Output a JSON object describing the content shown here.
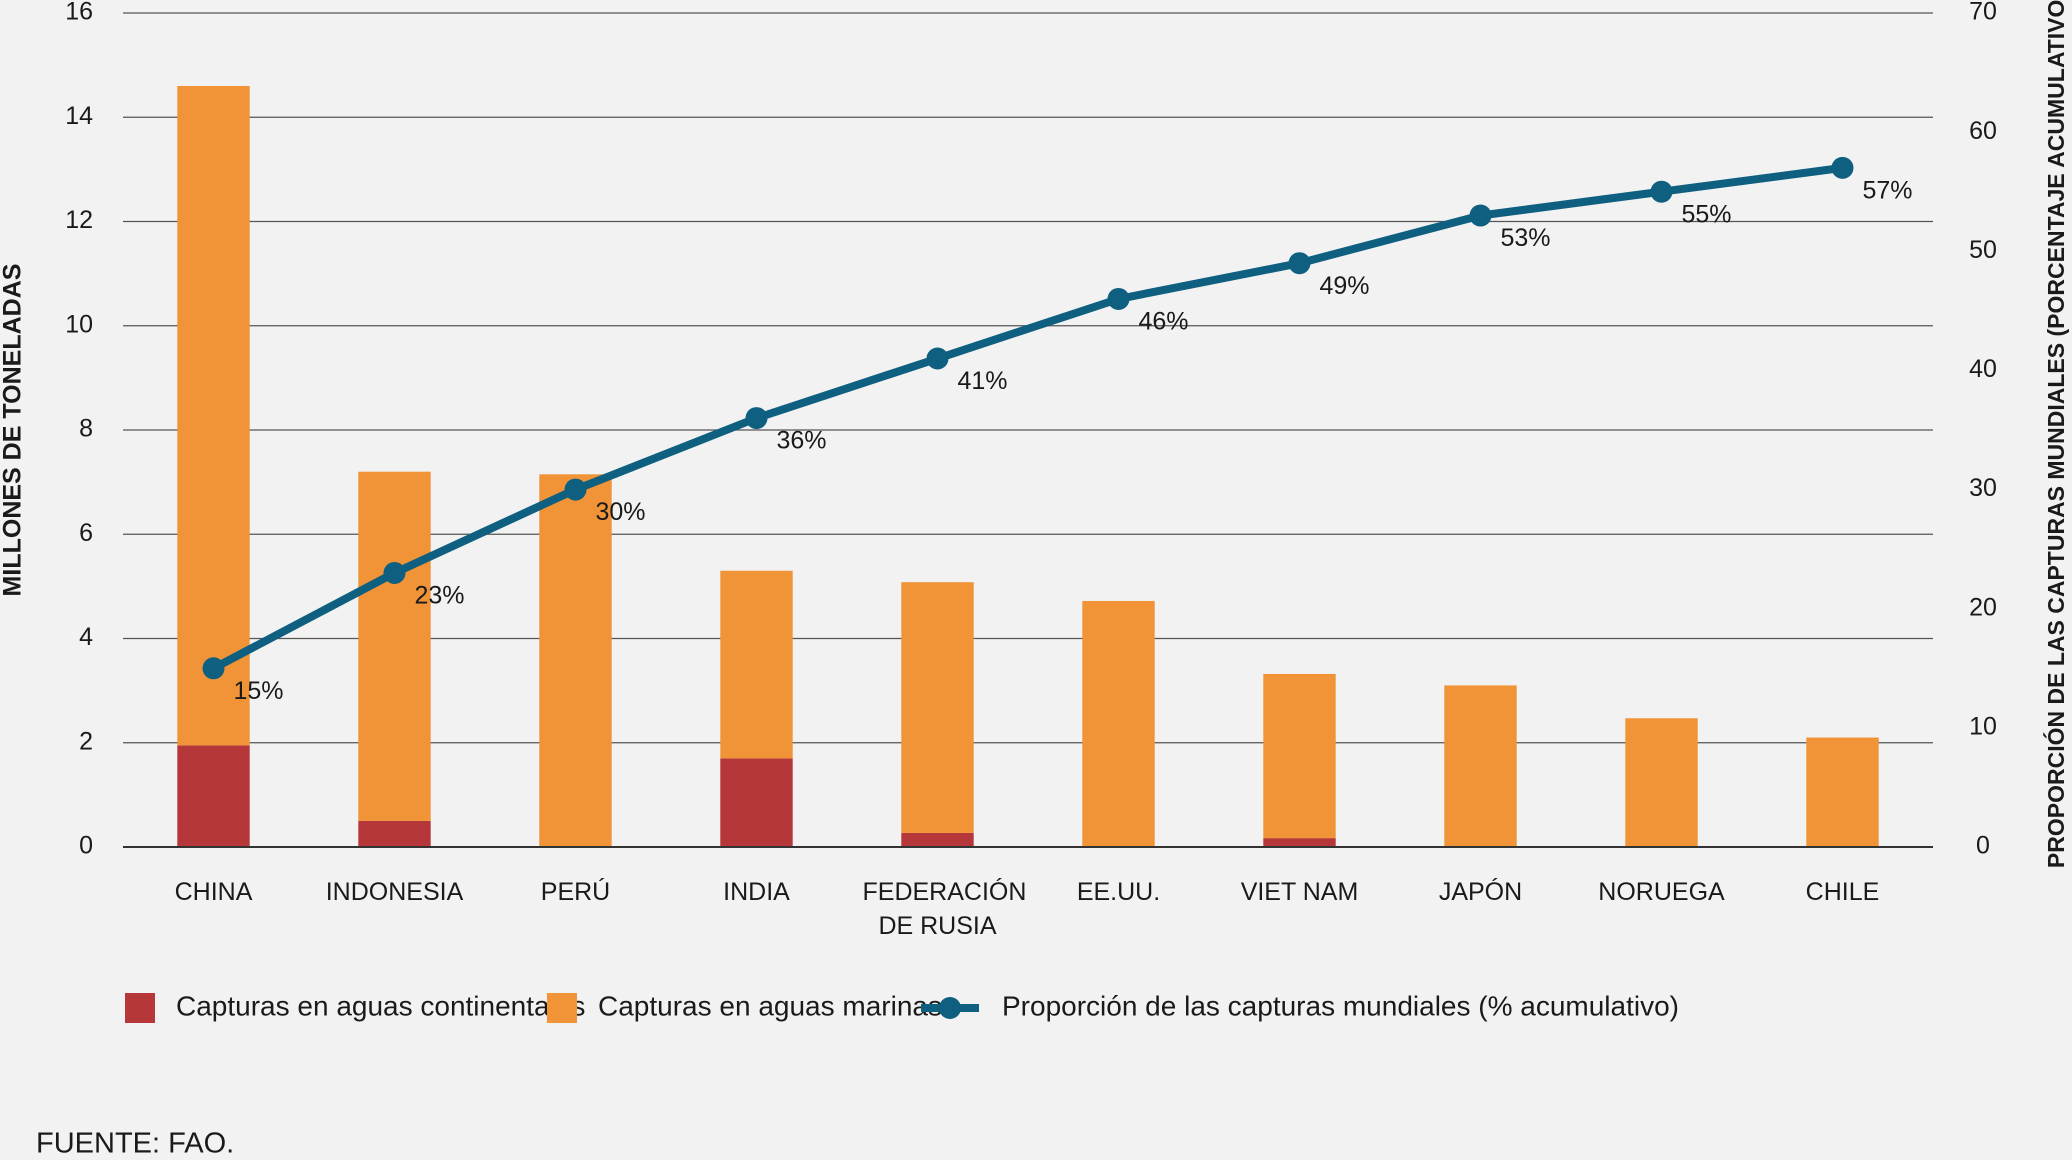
{
  "chart_data": {
    "type": "bar",
    "stacked": true,
    "categories": [
      "CHINA",
      "INDONESIA",
      "PERÚ",
      "INDIA",
      "FEDERACIÓN DE RUSIA",
      "EE.UU.",
      "VIET NAM",
      "JAPÓN",
      "NORUEGA",
      "CHILE"
    ],
    "series": [
      {
        "name": "Capturas en aguas continentales",
        "color": "#b5373a",
        "values": [
          1.95,
          0.5,
          0,
          1.7,
          0.27,
          0,
          0.17,
          0,
          0,
          0
        ]
      },
      {
        "name": "Capturas en aguas marinas",
        "color": "#f09437",
        "values": [
          12.65,
          6.7,
          7.15,
          3.6,
          4.81,
          4.72,
          3.15,
          3.1,
          2.47,
          2.1
        ]
      },
      {
        "name": "Proporción de las capturas mundiales (% acumulativo)",
        "type": "line",
        "axis": "y2",
        "color": "#0e5f80",
        "values": [
          15,
          23,
          30,
          36,
          41,
          46,
          49,
          53,
          55,
          57
        ],
        "value_labels": [
          "15%",
          "23%",
          "30%",
          "36%",
          "41%",
          "46%",
          "49%",
          "53%",
          "55%",
          "57%"
        ]
      }
    ],
    "y_label": "MILLONES DE TONELADAS",
    "y2_label": "PROPORCIÓN DE LAS CAPTURAS MUNDIALES (PORCENTAJE ACUMULATIVO)",
    "ylim": [
      0,
      16
    ],
    "yticks": [
      0,
      2,
      4,
      6,
      8,
      10,
      12,
      14,
      16
    ],
    "y2lim": [
      0,
      70
    ],
    "y2ticks": [
      0,
      10,
      20,
      30,
      40,
      50,
      60,
      70
    ],
    "grid": true,
    "source": "FUENTE: FAO."
  }
}
